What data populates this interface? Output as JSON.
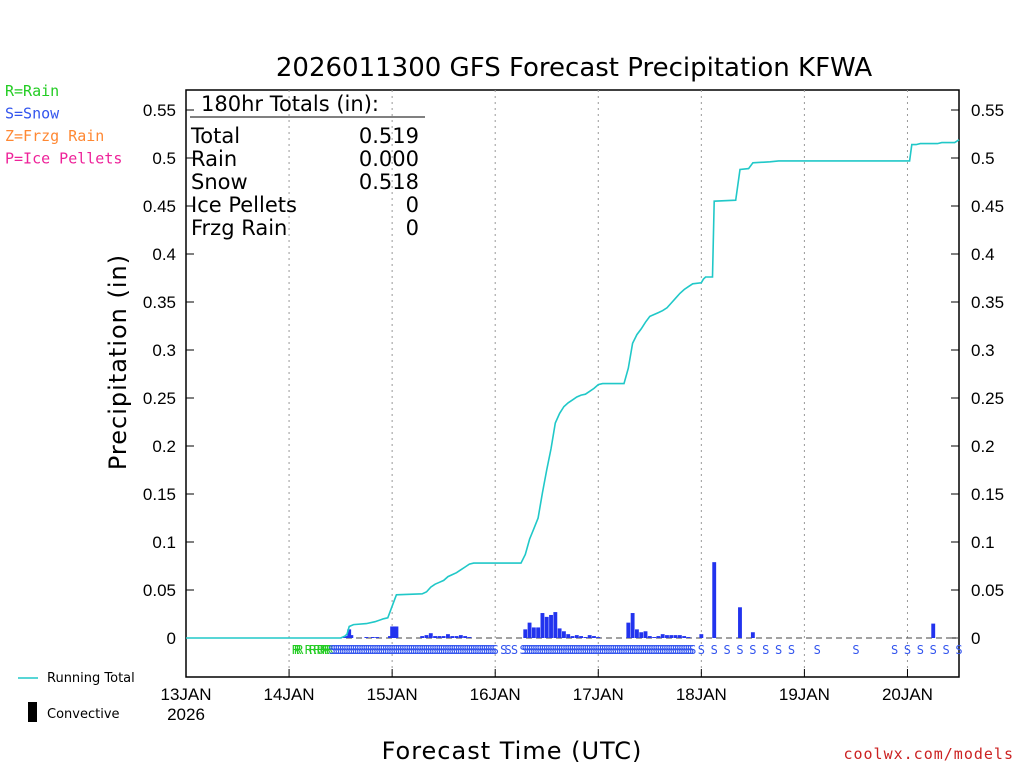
{
  "chart_data": {
    "type": "bar+line",
    "title": "2026011300 GFS Forecast Precipitation KFWA",
    "xlabel": "Forecast Time (UTC)",
    "ylabel": "Precipitation (in)",
    "ylim": [
      -0.04,
      0.56
    ],
    "yticks": [
      "0",
      "0.05",
      "0.1",
      "0.15",
      "0.2",
      "0.25",
      "0.3",
      "0.35",
      "0.4",
      "0.45",
      "0.5",
      "0.55"
    ],
    "xlim_hours": [
      0,
      180
    ],
    "xticks": [
      {
        "hour": 0,
        "label": "13JAN",
        "sublabel": "2026"
      },
      {
        "hour": 24,
        "label": "14JAN"
      },
      {
        "hour": 48,
        "label": "15JAN"
      },
      {
        "hour": 72,
        "label": "16JAN"
      },
      {
        "hour": 96,
        "label": "17JAN"
      },
      {
        "hour": 120,
        "label": "18JAN"
      },
      {
        "hour": 144,
        "label": "19JAN"
      },
      {
        "hour": 168,
        "label": "20JAN"
      }
    ],
    "totals": {
      "heading": "180hr Totals (in):",
      "rows": [
        {
          "label": "Total",
          "value": "0.519"
        },
        {
          "label": "Rain",
          "value": "0.000"
        },
        {
          "label": "Snow",
          "value": "0.518"
        },
        {
          "label": "Ice Pellets",
          "value": "0"
        },
        {
          "label": "Frzg Rain",
          "value": "0"
        }
      ]
    },
    "ptype_legend": [
      {
        "text": "R=Rain",
        "color": "#22cc22"
      },
      {
        "text": "S=Snow",
        "color": "#3355ee"
      },
      {
        "text": "Z=Frzg Rain",
        "color": "#ff8833"
      },
      {
        "text": "P=Ice Pellets",
        "color": "#ee2299"
      }
    ],
    "series_legend": {
      "running_total": "Running Total",
      "convective": "Convective",
      "running_total_color": "#20c8c8",
      "bar_color": "#2233ee"
    },
    "credit": "coolwx.com/models",
    "credit_color": "#cc2222",
    "bars": [
      {
        "h": 37,
        "v": 0.001
      },
      {
        "h": 37.5,
        "v": 0.002
      },
      {
        "h": 38,
        "v": 0.009
      },
      {
        "h": 38.5,
        "v": 0.003
      },
      {
        "h": 42,
        "v": 0.001
      },
      {
        "h": 43.5,
        "v": 0.001
      },
      {
        "h": 44.5,
        "v": 0.001
      },
      {
        "h": 47.5,
        "v": 0.002
      },
      {
        "h": 48,
        "v": 0.012
      },
      {
        "h": 48.5,
        "v": 0.012
      },
      {
        "h": 49,
        "v": 0.012
      },
      {
        "h": 55,
        "v": 0.002
      },
      {
        "h": 56,
        "v": 0.003
      },
      {
        "h": 57,
        "v": 0.005
      },
      {
        "h": 58,
        "v": 0.002
      },
      {
        "h": 59,
        "v": 0.002
      },
      {
        "h": 60,
        "v": 0.002
      },
      {
        "h": 61,
        "v": 0.004
      },
      {
        "h": 62,
        "v": 0.002
      },
      {
        "h": 63,
        "v": 0.002
      },
      {
        "h": 64,
        "v": 0.003
      },
      {
        "h": 65,
        "v": 0.002
      },
      {
        "h": 66,
        "v": 0.001
      },
      {
        "h": 79,
        "v": 0.009
      },
      {
        "h": 80,
        "v": 0.016
      },
      {
        "h": 81,
        "v": 0.011
      },
      {
        "h": 82,
        "v": 0.011
      },
      {
        "h": 83,
        "v": 0.026
      },
      {
        "h": 84,
        "v": 0.022
      },
      {
        "h": 85,
        "v": 0.024
      },
      {
        "h": 86,
        "v": 0.027
      },
      {
        "h": 87,
        "v": 0.01
      },
      {
        "h": 88,
        "v": 0.007
      },
      {
        "h": 89,
        "v": 0.004
      },
      {
        "h": 90,
        "v": 0.002
      },
      {
        "h": 91,
        "v": 0.003
      },
      {
        "h": 92,
        "v": 0.002
      },
      {
        "h": 93,
        "v": 0.001
      },
      {
        "h": 94,
        "v": 0.003
      },
      {
        "h": 95,
        "v": 0.002
      },
      {
        "h": 96,
        "v": 0.001
      },
      {
        "h": 103,
        "v": 0.016
      },
      {
        "h": 104,
        "v": 0.026
      },
      {
        "h": 105,
        "v": 0.009
      },
      {
        "h": 106,
        "v": 0.006
      },
      {
        "h": 107,
        "v": 0.007
      },
      {
        "h": 108,
        "v": 0.002
      },
      {
        "h": 109,
        "v": 0.001
      },
      {
        "h": 110,
        "v": 0.002
      },
      {
        "h": 111,
        "v": 0.004
      },
      {
        "h": 112,
        "v": 0.003
      },
      {
        "h": 113,
        "v": 0.003
      },
      {
        "h": 114,
        "v": 0.003
      },
      {
        "h": 115,
        "v": 0.003
      },
      {
        "h": 116,
        "v": 0.002
      },
      {
        "h": 117,
        "v": 0.001
      },
      {
        "h": 120,
        "v": 0.004
      },
      {
        "h": 123,
        "v": 0.079
      },
      {
        "h": 129,
        "v": 0.032
      },
      {
        "h": 132,
        "v": 0.006
      },
      {
        "h": 174,
        "v": 0.015
      }
    ],
    "running_total": [
      {
        "h": 0,
        "v": 0
      },
      {
        "h": 36,
        "v": 0
      },
      {
        "h": 37,
        "v": 0.002
      },
      {
        "h": 37.5,
        "v": 0.004
      },
      {
        "h": 38,
        "v": 0.012
      },
      {
        "h": 39,
        "v": 0.014
      },
      {
        "h": 42,
        "v": 0.015
      },
      {
        "h": 44,
        "v": 0.017
      },
      {
        "h": 46,
        "v": 0.02
      },
      {
        "h": 47,
        "v": 0.021
      },
      {
        "h": 48,
        "v": 0.033
      },
      {
        "h": 49,
        "v": 0.045
      },
      {
        "h": 55,
        "v": 0.046
      },
      {
        "h": 56,
        "v": 0.048
      },
      {
        "h": 57,
        "v": 0.053
      },
      {
        "h": 58,
        "v": 0.056
      },
      {
        "h": 59,
        "v": 0.058
      },
      {
        "h": 60,
        "v": 0.06
      },
      {
        "h": 61,
        "v": 0.064
      },
      {
        "h": 62,
        "v": 0.066
      },
      {
        "h": 63,
        "v": 0.068
      },
      {
        "h": 64,
        "v": 0.071
      },
      {
        "h": 65,
        "v": 0.074
      },
      {
        "h": 66,
        "v": 0.077
      },
      {
        "h": 67,
        "v": 0.078
      },
      {
        "h": 78,
        "v": 0.078
      },
      {
        "h": 79,
        "v": 0.087
      },
      {
        "h": 80,
        "v": 0.103
      },
      {
        "h": 81,
        "v": 0.114
      },
      {
        "h": 82,
        "v": 0.125
      },
      {
        "h": 83,
        "v": 0.151
      },
      {
        "h": 84,
        "v": 0.175
      },
      {
        "h": 85,
        "v": 0.197
      },
      {
        "h": 86,
        "v": 0.224
      },
      {
        "h": 87,
        "v": 0.234
      },
      {
        "h": 88,
        "v": 0.241
      },
      {
        "h": 89,
        "v": 0.245
      },
      {
        "h": 90,
        "v": 0.248
      },
      {
        "h": 91,
        "v": 0.251
      },
      {
        "h": 92,
        "v": 0.253
      },
      {
        "h": 93,
        "v": 0.254
      },
      {
        "h": 94,
        "v": 0.257
      },
      {
        "h": 95,
        "v": 0.26
      },
      {
        "h": 96,
        "v": 0.264
      },
      {
        "h": 97,
        "v": 0.265
      },
      {
        "h": 102,
        "v": 0.265
      },
      {
        "h": 103,
        "v": 0.281
      },
      {
        "h": 104,
        "v": 0.307
      },
      {
        "h": 105,
        "v": 0.316
      },
      {
        "h": 106,
        "v": 0.322
      },
      {
        "h": 107,
        "v": 0.329
      },
      {
        "h": 108,
        "v": 0.335
      },
      {
        "h": 109,
        "v": 0.337
      },
      {
        "h": 110,
        "v": 0.339
      },
      {
        "h": 111,
        "v": 0.341
      },
      {
        "h": 112,
        "v": 0.344
      },
      {
        "h": 113,
        "v": 0.349
      },
      {
        "h": 114,
        "v": 0.354
      },
      {
        "h": 115,
        "v": 0.359
      },
      {
        "h": 116,
        "v": 0.363
      },
      {
        "h": 117,
        "v": 0.366
      },
      {
        "h": 118,
        "v": 0.369
      },
      {
        "h": 120,
        "v": 0.37
      },
      {
        "h": 120.5,
        "v": 0.374
      },
      {
        "h": 121,
        "v": 0.376
      },
      {
        "h": 122.6,
        "v": 0.376
      },
      {
        "h": 123,
        "v": 0.455
      },
      {
        "h": 128,
        "v": 0.456
      },
      {
        "h": 129,
        "v": 0.488
      },
      {
        "h": 131,
        "v": 0.489
      },
      {
        "h": 132,
        "v": 0.495
      },
      {
        "h": 136,
        "v": 0.496
      },
      {
        "h": 138,
        "v": 0.497
      },
      {
        "h": 166,
        "v": 0.497
      },
      {
        "h": 167,
        "v": 0.497
      },
      {
        "h": 168,
        "v": 0.497
      },
      {
        "h": 168.5,
        "v": 0.497
      },
      {
        "h": 169,
        "v": 0.514
      },
      {
        "h": 170,
        "v": 0.514
      },
      {
        "h": 171,
        "v": 0.515
      },
      {
        "h": 175,
        "v": 0.515
      },
      {
        "h": 176,
        "v": 0.516
      },
      {
        "h": 179,
        "v": 0.516
      },
      {
        "h": 180,
        "v": 0.519
      }
    ],
    "ptype_marks": [
      {
        "h": 25.5,
        "t": "R"
      },
      {
        "h": 26,
        "t": "R"
      },
      {
        "h": 26.5,
        "t": "R"
      },
      {
        "h": 28.5,
        "t": "R"
      },
      {
        "h": 29.5,
        "t": "R"
      },
      {
        "h": 30.5,
        "t": "R"
      },
      {
        "h": 31.3,
        "t": "R"
      },
      {
        "h": 32,
        "t": "R"
      },
      {
        "h": 32.5,
        "t": "R"
      },
      {
        "h": 33,
        "t": "R"
      },
      {
        "h": 33.5,
        "t": "R"
      },
      {
        "h": 34,
        "t": "S"
      },
      {
        "h": 34.5,
        "t": "S"
      },
      {
        "h": 35,
        "t": "S"
      },
      {
        "h": 35.5,
        "t": "S"
      },
      {
        "h": 36,
        "t": "S"
      },
      {
        "h": 36.5,
        "t": "S"
      },
      {
        "h": 37,
        "t": "S"
      },
      {
        "h": 37.5,
        "t": "S"
      },
      {
        "h": 38,
        "t": "S"
      },
      {
        "h": 38.5,
        "t": "S"
      },
      {
        "h": 39,
        "t": "S"
      },
      {
        "h": 39.5,
        "t": "S"
      },
      {
        "h": 40,
        "t": "S"
      },
      {
        "h": 40.5,
        "t": "S"
      },
      {
        "h": 41,
        "t": "S"
      },
      {
        "h": 41.5,
        "t": "S"
      },
      {
        "h": 42,
        "t": "S"
      },
      {
        "h": 42.5,
        "t": "S"
      },
      {
        "h": 43,
        "t": "S"
      },
      {
        "h": 43.5,
        "t": "S"
      },
      {
        "h": 44,
        "t": "S"
      },
      {
        "h": 44.5,
        "t": "S"
      },
      {
        "h": 45,
        "t": "S"
      },
      {
        "h": 45.5,
        "t": "S"
      },
      {
        "h": 46,
        "t": "S"
      },
      {
        "h": 46.5,
        "t": "S"
      },
      {
        "h": 47,
        "t": "S"
      },
      {
        "h": 47.5,
        "t": "S"
      },
      {
        "h": 48,
        "t": "S"
      },
      {
        "h": 48.5,
        "t": "S"
      },
      {
        "h": 49,
        "t": "S"
      },
      {
        "h": 49.5,
        "t": "S"
      },
      {
        "h": 50,
        "t": "S"
      },
      {
        "h": 50.5,
        "t": "S"
      },
      {
        "h": 51,
        "t": "S"
      },
      {
        "h": 51.5,
        "t": "S"
      },
      {
        "h": 52,
        "t": "S"
      },
      {
        "h": 52.5,
        "t": "S"
      },
      {
        "h": 53,
        "t": "S"
      },
      {
        "h": 53.5,
        "t": "S"
      },
      {
        "h": 54,
        "t": "S"
      },
      {
        "h": 54.5,
        "t": "S"
      },
      {
        "h": 55,
        "t": "S"
      },
      {
        "h": 55.5,
        "t": "S"
      },
      {
        "h": 56,
        "t": "S"
      },
      {
        "h": 56.5,
        "t": "S"
      },
      {
        "h": 57,
        "t": "S"
      },
      {
        "h": 57.5,
        "t": "S"
      },
      {
        "h": 58,
        "t": "S"
      },
      {
        "h": 58.5,
        "t": "S"
      },
      {
        "h": 59,
        "t": "S"
      },
      {
        "h": 59.5,
        "t": "S"
      },
      {
        "h": 60,
        "t": "S"
      },
      {
        "h": 60.5,
        "t": "S"
      },
      {
        "h": 61,
        "t": "S"
      },
      {
        "h": 61.5,
        "t": "S"
      },
      {
        "h": 62,
        "t": "S"
      },
      {
        "h": 62.5,
        "t": "S"
      },
      {
        "h": 63,
        "t": "S"
      },
      {
        "h": 63.5,
        "t": "S"
      },
      {
        "h": 64,
        "t": "S"
      },
      {
        "h": 64.5,
        "t": "S"
      },
      {
        "h": 65,
        "t": "S"
      },
      {
        "h": 65.5,
        "t": "S"
      },
      {
        "h": 66,
        "t": "S"
      },
      {
        "h": 66.5,
        "t": "S"
      },
      {
        "h": 67,
        "t": "S"
      },
      {
        "h": 67.5,
        "t": "S"
      },
      {
        "h": 68,
        "t": "S"
      },
      {
        "h": 68.5,
        "t": "S"
      },
      {
        "h": 69,
        "t": "S"
      },
      {
        "h": 69.5,
        "t": "S"
      },
      {
        "h": 70,
        "t": "S"
      },
      {
        "h": 70.5,
        "t": "S"
      },
      {
        "h": 71,
        "t": "S"
      },
      {
        "h": 71.5,
        "t": "S"
      },
      {
        "h": 72,
        "t": "S"
      },
      {
        "h": 74,
        "t": "S"
      },
      {
        "h": 75,
        "t": "S"
      },
      {
        "h": 76.5,
        "t": "S"
      },
      {
        "h": 78.5,
        "t": "S"
      },
      {
        "h": 79,
        "t": "S"
      },
      {
        "h": 79.5,
        "t": "S"
      },
      {
        "h": 80,
        "t": "S"
      },
      {
        "h": 80.5,
        "t": "S"
      },
      {
        "h": 81,
        "t": "S"
      },
      {
        "h": 81.5,
        "t": "S"
      },
      {
        "h": 82,
        "t": "S"
      },
      {
        "h": 82.5,
        "t": "S"
      },
      {
        "h": 83,
        "t": "S"
      },
      {
        "h": 83.5,
        "t": "S"
      },
      {
        "h": 84,
        "t": "S"
      },
      {
        "h": 84.5,
        "t": "S"
      },
      {
        "h": 85,
        "t": "S"
      },
      {
        "h": 85.5,
        "t": "S"
      },
      {
        "h": 86,
        "t": "S"
      },
      {
        "h": 86.5,
        "t": "S"
      },
      {
        "h": 87,
        "t": "S"
      },
      {
        "h": 87.5,
        "t": "S"
      },
      {
        "h": 88,
        "t": "S"
      },
      {
        "h": 88.5,
        "t": "S"
      },
      {
        "h": 89,
        "t": "S"
      },
      {
        "h": 89.5,
        "t": "S"
      },
      {
        "h": 90,
        "t": "S"
      },
      {
        "h": 90.5,
        "t": "S"
      },
      {
        "h": 91,
        "t": "S"
      },
      {
        "h": 91.5,
        "t": "S"
      },
      {
        "h": 92,
        "t": "S"
      },
      {
        "h": 92.5,
        "t": "S"
      },
      {
        "h": 93,
        "t": "S"
      },
      {
        "h": 93.5,
        "t": "S"
      },
      {
        "h": 94,
        "t": "S"
      },
      {
        "h": 94.5,
        "t": "S"
      },
      {
        "h": 95,
        "t": "S"
      },
      {
        "h": 95.5,
        "t": "S"
      },
      {
        "h": 96,
        "t": "S"
      },
      {
        "h": 96.5,
        "t": "S"
      },
      {
        "h": 97,
        "t": "S"
      },
      {
        "h": 97.5,
        "t": "S"
      },
      {
        "h": 98,
        "t": "S"
      },
      {
        "h": 98.5,
        "t": "S"
      },
      {
        "h": 99,
        "t": "S"
      },
      {
        "h": 99.5,
        "t": "S"
      },
      {
        "h": 100,
        "t": "S"
      },
      {
        "h": 100.5,
        "t": "S"
      },
      {
        "h": 101,
        "t": "S"
      },
      {
        "h": 101.5,
        "t": "S"
      },
      {
        "h": 102,
        "t": "S"
      },
      {
        "h": 102.5,
        "t": "S"
      },
      {
        "h": 103,
        "t": "S"
      },
      {
        "h": 103.5,
        "t": "S"
      },
      {
        "h": 104,
        "t": "S"
      },
      {
        "h": 104.5,
        "t": "S"
      },
      {
        "h": 105,
        "t": "S"
      },
      {
        "h": 105.5,
        "t": "S"
      },
      {
        "h": 106,
        "t": "S"
      },
      {
        "h": 106.5,
        "t": "S"
      },
      {
        "h": 107,
        "t": "S"
      },
      {
        "h": 107.5,
        "t": "S"
      },
      {
        "h": 108,
        "t": "S"
      },
      {
        "h": 108.5,
        "t": "S"
      },
      {
        "h": 109,
        "t": "S"
      },
      {
        "h": 109.5,
        "t": "S"
      },
      {
        "h": 110,
        "t": "S"
      },
      {
        "h": 110.5,
        "t": "S"
      },
      {
        "h": 111,
        "t": "S"
      },
      {
        "h": 111.5,
        "t": "S"
      },
      {
        "h": 112,
        "t": "S"
      },
      {
        "h": 112.5,
        "t": "S"
      },
      {
        "h": 113,
        "t": "S"
      },
      {
        "h": 113.5,
        "t": "S"
      },
      {
        "h": 114,
        "t": "S"
      },
      {
        "h": 114.5,
        "t": "S"
      },
      {
        "h": 115,
        "t": "S"
      },
      {
        "h": 115.5,
        "t": "S"
      },
      {
        "h": 116,
        "t": "S"
      },
      {
        "h": 116.5,
        "t": "S"
      },
      {
        "h": 117,
        "t": "S"
      },
      {
        "h": 117.5,
        "t": "S"
      },
      {
        "h": 118,
        "t": "S"
      },
      {
        "h": 120,
        "t": "S"
      },
      {
        "h": 123,
        "t": "S"
      },
      {
        "h": 126,
        "t": "S"
      },
      {
        "h": 129,
        "t": "S"
      },
      {
        "h": 132,
        "t": "S"
      },
      {
        "h": 135,
        "t": "S"
      },
      {
        "h": 138,
        "t": "S"
      },
      {
        "h": 141,
        "t": "S"
      },
      {
        "h": 147,
        "t": "S"
      },
      {
        "h": 156,
        "t": "S"
      },
      {
        "h": 165,
        "t": "S"
      },
      {
        "h": 168,
        "t": "S"
      },
      {
        "h": 171,
        "t": "S"
      },
      {
        "h": 174,
        "t": "S"
      },
      {
        "h": 177,
        "t": "S"
      },
      {
        "h": 180,
        "t": "S"
      }
    ]
  }
}
